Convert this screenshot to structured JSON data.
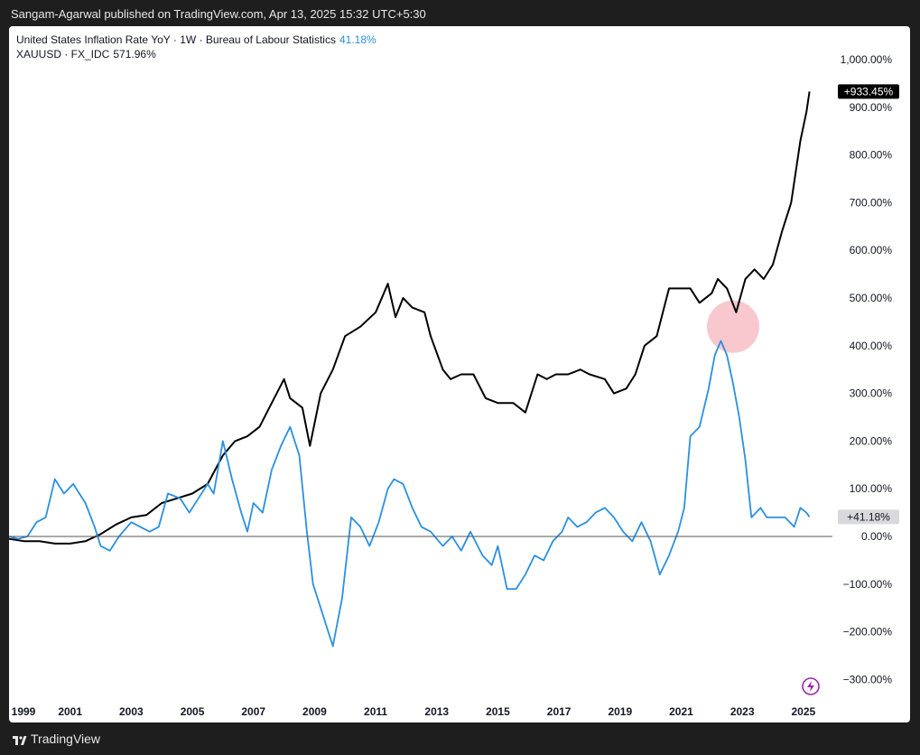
{
  "header": {
    "publisher_line": "Sangam-Agarwal published on TradingView.com, Apr 13, 2025 15:32 UTC+5:30"
  },
  "legend": {
    "series1_title": "United States Inflation Rate YoY · 1W · Bureau of Labour Statistics",
    "series1_value": "41.18%",
    "series2_title": "XAUUSD · FX_IDC",
    "series2_value": "571.96%"
  },
  "footer": {
    "brand": "TradingView",
    "logo_icon": "tradingview-logo-icon"
  },
  "colors": {
    "inflation": "#2b90e0",
    "gold": "#000000",
    "highlight": "#f5b5bd",
    "zero_line": "#555555",
    "lightning": "#9c27b0"
  },
  "badges": {
    "gold_last": "+933.45%",
    "inflation_last": "+41.18%"
  },
  "chart_data": {
    "type": "line",
    "title": "",
    "xlabel": "",
    "ylabel": "",
    "x_range": [
      1999.0,
      2025.3
    ],
    "ylim": [
      -320,
      1020
    ],
    "y_ticks": [
      1000,
      900,
      800,
      700,
      600,
      500,
      400,
      300,
      200,
      100,
      0,
      -100,
      -200,
      -300
    ],
    "y_tick_labels": [
      "1,000.00%",
      "900.00%",
      "800.00%",
      "700.00%",
      "600.00%",
      "500.00%",
      "400.00%",
      "300.00%",
      "200.00%",
      "100.00%",
      "0.00%",
      "−100.00%",
      "−200.00%",
      "−300.00%"
    ],
    "x_ticks": [
      1999,
      2001,
      2003,
      2005,
      2007,
      2009,
      2011,
      2013,
      2015,
      2017,
      2019,
      2021,
      2023,
      2025
    ],
    "x_tick_labels": [
      "1999",
      "2001",
      "2003",
      "2005",
      "2007",
      "2009",
      "2011",
      "2013",
      "2015",
      "2017",
      "2019",
      "2021",
      "2023",
      "2025"
    ],
    "grid": false,
    "series": [
      {
        "name": "XAUUSD · FX_IDC",
        "color": "#000000",
        "last_label": "+933.45%",
        "x": [
          1999.0,
          1999.5,
          2000.0,
          2000.5,
          2001.0,
          2001.5,
          2002.0,
          2002.5,
          2003.0,
          2003.5,
          2004.0,
          2004.5,
          2005.0,
          2005.5,
          2006.0,
          2006.4,
          2006.8,
          2007.2,
          2007.6,
          2008.0,
          2008.2,
          2008.6,
          2008.85,
          2009.2,
          2009.6,
          2010.0,
          2010.5,
          2011.0,
          2011.4,
          2011.65,
          2011.9,
          2012.2,
          2012.6,
          2012.8,
          2013.2,
          2013.45,
          2013.8,
          2014.2,
          2014.6,
          2015.0,
          2015.5,
          2015.9,
          2016.3,
          2016.6,
          2016.9,
          2017.3,
          2017.7,
          2018.0,
          2018.5,
          2018.8,
          2019.2,
          2019.5,
          2019.8,
          2020.2,
          2020.6,
          2021.0,
          2021.3,
          2021.6,
          2022.0,
          2022.2,
          2022.5,
          2022.8,
          2023.1,
          2023.4,
          2023.7,
          2024.0,
          2024.3,
          2024.6,
          2024.9,
          2025.1,
          2025.2
        ],
        "y": [
          -5,
          -10,
          -10,
          -15,
          -15,
          -10,
          5,
          25,
          40,
          45,
          70,
          80,
          90,
          110,
          170,
          200,
          210,
          230,
          280,
          330,
          290,
          270,
          190,
          300,
          350,
          420,
          440,
          470,
          530,
          460,
          500,
          480,
          470,
          420,
          350,
          330,
          340,
          340,
          290,
          280,
          280,
          260,
          340,
          330,
          340,
          340,
          350,
          340,
          330,
          300,
          310,
          340,
          400,
          420,
          520,
          520,
          520,
          490,
          510,
          540,
          520,
          470,
          540,
          560,
          540,
          570,
          640,
          700,
          830,
          890,
          933
        ]
      },
      {
        "name": "United States Inflation Rate YoY · 1W · Bureau of Labour Statistics",
        "color": "#2b90e0",
        "last_label": "+41.18%",
        "x": [
          1999.0,
          1999.3,
          1999.6,
          1999.9,
          2000.2,
          2000.5,
          2000.8,
          2001.1,
          2001.5,
          2001.8,
          2002.0,
          2002.3,
          2002.6,
          2003.0,
          2003.3,
          2003.6,
          2003.9,
          2004.2,
          2004.6,
          2004.9,
          2005.2,
          2005.5,
          2005.7,
          2006.0,
          2006.3,
          2006.6,
          2006.8,
          2007.0,
          2007.3,
          2007.6,
          2007.9,
          2008.2,
          2008.5,
          2008.75,
          2008.95,
          2009.2,
          2009.45,
          2009.6,
          2009.9,
          2010.2,
          2010.5,
          2010.8,
          2011.1,
          2011.4,
          2011.6,
          2011.9,
          2012.2,
          2012.5,
          2012.8,
          2013.2,
          2013.5,
          2013.8,
          2014.1,
          2014.5,
          2014.8,
          2015.0,
          2015.3,
          2015.6,
          2015.9,
          2016.2,
          2016.5,
          2016.8,
          2017.1,
          2017.3,
          2017.6,
          2017.9,
          2018.2,
          2018.5,
          2018.8,
          2019.1,
          2019.4,
          2019.7,
          2020.0,
          2020.3,
          2020.6,
          2020.9,
          2021.1,
          2021.3,
          2021.6,
          2021.9,
          2022.1,
          2022.3,
          2022.5,
          2022.7,
          2022.9,
          2023.1,
          2023.3,
          2023.6,
          2023.8,
          2024.1,
          2024.4,
          2024.7,
          2024.9,
          2025.1,
          2025.2
        ],
        "y": [
          0,
          -5,
          0,
          30,
          40,
          120,
          90,
          110,
          70,
          20,
          -20,
          -30,
          0,
          30,
          20,
          10,
          20,
          90,
          80,
          50,
          80,
          110,
          90,
          200,
          120,
          50,
          10,
          70,
          50,
          140,
          190,
          230,
          170,
          10,
          -100,
          -150,
          -200,
          -230,
          -130,
          40,
          20,
          -20,
          30,
          100,
          120,
          110,
          60,
          20,
          10,
          -20,
          0,
          -30,
          10,
          -40,
          -60,
          -20,
          -110,
          -110,
          -80,
          -40,
          -50,
          -10,
          10,
          40,
          20,
          30,
          50,
          60,
          40,
          10,
          -10,
          30,
          -10,
          -80,
          -40,
          10,
          60,
          210,
          230,
          310,
          380,
          410,
          380,
          320,
          250,
          160,
          40,
          60,
          40,
          40,
          40,
          20,
          60,
          50,
          41
        ]
      }
    ],
    "annotations": [
      {
        "type": "highlight-circle",
        "x": 2022.7,
        "y": 440
      },
      {
        "type": "lightning-icon",
        "x": 2025.2,
        "y": -310
      }
    ]
  }
}
